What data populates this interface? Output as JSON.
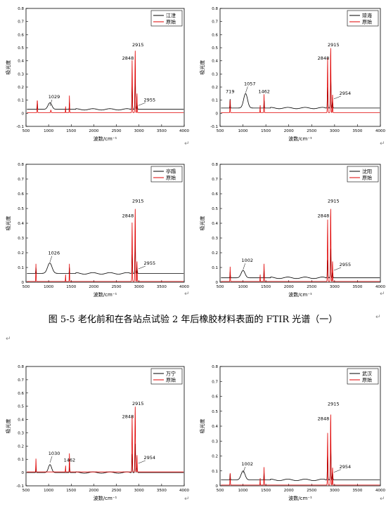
{
  "caption": "图 5-5  老化前和在各站点试验 2 年后橡胶材料表面的 FTIR 光谱（一）",
  "para_mark": "↵",
  "chart_data": [
    {
      "type": "line",
      "ylabel": "吸光度",
      "xlabel": "波数/cm⁻¹",
      "xlim": [
        500,
        4000
      ],
      "ylim": [
        -0.1,
        0.8
      ],
      "xticks": [
        500,
        1000,
        1500,
        2000,
        2500,
        3000,
        3500,
        4000
      ],
      "yticks": [
        -0.1,
        0,
        0.1,
        0.2,
        0.3,
        0.4,
        0.5,
        0.6,
        0.7,
        0.8
      ],
      "legend_position": "top-right",
      "series": [
        {
          "name": "江津",
          "color": "#000000"
        },
        {
          "name": "原始",
          "color": "#e00000"
        }
      ],
      "annotations": [
        {
          "label": "1029",
          "x": 1029,
          "y": 0.05
        },
        {
          "label": "2848",
          "x": 2848,
          "y": 0.38
        },
        {
          "label": "2915",
          "x": 2915,
          "y": 0.48
        },
        {
          "label": "2955",
          "x": 2955,
          "y": 0.07
        }
      ]
    },
    {
      "type": "line",
      "ylabel": "吸光度",
      "xlabel": "波数/cm⁻¹",
      "xlim": [
        500,
        4000
      ],
      "ylim": [
        -0.1,
        0.8
      ],
      "xticks": [
        500,
        1000,
        1500,
        2000,
        2500,
        3000,
        3500,
        4000
      ],
      "yticks": [
        -0.1,
        0,
        0.1,
        0.2,
        0.3,
        0.4,
        0.5,
        0.6,
        0.7,
        0.8
      ],
      "legend_position": "top-right",
      "series": [
        {
          "name": "琼海",
          "color": "#000000"
        },
        {
          "name": "原始",
          "color": "#e00000"
        }
      ],
      "annotations": [
        {
          "label": "719",
          "x": 719,
          "y": 0.1
        },
        {
          "label": "1057",
          "x": 1057,
          "y": 0.15
        },
        {
          "label": "1462",
          "x": 1462,
          "y": 0.1
        },
        {
          "label": "2848",
          "x": 2848,
          "y": 0.42
        },
        {
          "label": "2915",
          "x": 2915,
          "y": 0.5
        },
        {
          "label": "2954",
          "x": 2954,
          "y": 0.12
        }
      ]
    },
    {
      "type": "line",
      "ylabel": "吸光度",
      "xlabel": "波数/cm⁻¹",
      "xlim": [
        500,
        4000
      ],
      "ylim": [
        0,
        0.8
      ],
      "xticks": [
        500,
        1000,
        1500,
        2000,
        2500,
        3000,
        3500,
        4000
      ],
      "yticks": [
        0,
        0.1,
        0.2,
        0.3,
        0.4,
        0.5,
        0.6,
        0.7,
        0.8
      ],
      "legend_position": "top-right",
      "series": [
        {
          "name": "亭蹋",
          "color": "#000000"
        },
        {
          "name": "原始",
          "color": "#e00000"
        }
      ],
      "annotations": [
        {
          "label": "1026",
          "x": 1026,
          "y": 0.13
        },
        {
          "label": "2848",
          "x": 2848,
          "y": 0.42
        },
        {
          "label": "2915",
          "x": 2915,
          "y": 0.5
        },
        {
          "label": "2955",
          "x": 2955,
          "y": 0.1
        }
      ]
    },
    {
      "type": "line",
      "ylabel": "吸光度",
      "xlabel": "波数/cm⁻¹",
      "xlim": [
        500,
        4000
      ],
      "ylim": [
        0,
        0.8
      ],
      "xticks": [
        500,
        1000,
        1500,
        2000,
        2500,
        3000,
        3500,
        4000
      ],
      "yticks": [
        0,
        0.1,
        0.2,
        0.3,
        0.4,
        0.5,
        0.6,
        0.7,
        0.8
      ],
      "legend_position": "top-right",
      "series": [
        {
          "name": "沈阳",
          "color": "#000000"
        },
        {
          "name": "原始",
          "color": "#e00000"
        }
      ],
      "annotations": [
        {
          "label": "1002",
          "x": 1002,
          "y": 0.08
        },
        {
          "label": "2848",
          "x": 2848,
          "y": 0.43
        },
        {
          "label": "2915",
          "x": 2915,
          "y": 0.5
        },
        {
          "label": "2955",
          "x": 2955,
          "y": 0.09
        }
      ]
    },
    {
      "type": "line",
      "ylabel": "吸光度",
      "xlabel": "波数/cm⁻¹",
      "xlim": [
        500,
        4000
      ],
      "ylim": [
        -0.1,
        0.8
      ],
      "xticks": [
        500,
        1000,
        1500,
        2000,
        2500,
        3000,
        3500,
        4000
      ],
      "yticks": [
        -0.1,
        0,
        0.1,
        0.2,
        0.3,
        0.4,
        0.5,
        0.6,
        0.7,
        0.8
      ],
      "legend_position": "top-right",
      "series": [
        {
          "name": "万宁",
          "color": "#000000"
        },
        {
          "name": "原始",
          "color": "#e00000"
        }
      ],
      "annotations": [
        {
          "label": "1030",
          "x": 1030,
          "y": 0.07
        },
        {
          "label": "1462",
          "x": 1462,
          "y": 0.03
        },
        {
          "label": "2848",
          "x": 2848,
          "y": 0.43
        },
        {
          "label": "2915",
          "x": 2915,
          "y": 0.5
        },
        {
          "label": "2954",
          "x": 2954,
          "y": 0.08
        }
      ]
    },
    {
      "type": "line",
      "ylabel": "吸光度",
      "xlabel": "波数/cm⁻¹",
      "xlim": [
        500,
        4000
      ],
      "ylim": [
        0,
        0.8
      ],
      "xticks": [
        500,
        1000,
        1500,
        2000,
        2500,
        3000,
        3500,
        4000
      ],
      "yticks": [
        0,
        0.1,
        0.2,
        0.3,
        0.4,
        0.5,
        0.6,
        0.7,
        0.8
      ],
      "legend_position": "top-right",
      "series": [
        {
          "name": "武汉",
          "color": "#000000"
        },
        {
          "name": "原始",
          "color": "#e00000"
        }
      ],
      "annotations": [
        {
          "label": "1002",
          "x": 1002,
          "y": 0.08
        },
        {
          "label": "2848",
          "x": 2848,
          "y": 0.43
        },
        {
          "label": "2915",
          "x": 2915,
          "y": 0.5
        },
        {
          "label": "2954",
          "x": 2954,
          "y": 0.1
        }
      ]
    }
  ]
}
